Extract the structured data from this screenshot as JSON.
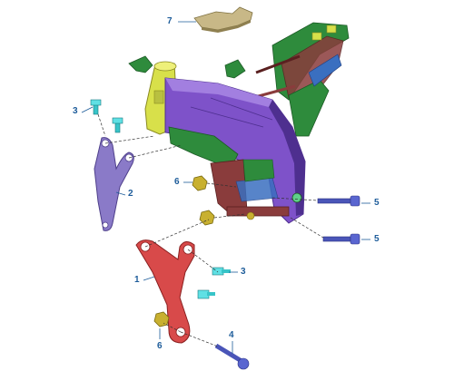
{
  "callouts": [
    {
      "id": "c7",
      "label": "7"
    },
    {
      "id": "c3a",
      "label": "3"
    },
    {
      "id": "c2",
      "label": "2"
    },
    {
      "id": "c6a",
      "label": "6"
    },
    {
      "id": "c5a",
      "label": "5"
    },
    {
      "id": "c5b",
      "label": "5"
    },
    {
      "id": "c1",
      "label": "1"
    },
    {
      "id": "c3b",
      "label": "3"
    },
    {
      "id": "c6b",
      "label": "6"
    },
    {
      "id": "c4",
      "label": "4"
    }
  ],
  "colors": {
    "callout_text": "#1d5c9a",
    "leader_line": "#1d5c9a",
    "frame_purple": "#7e52c9",
    "frame_purple_dark": "#4e2f8f",
    "frame_green": "#2e8b3c",
    "frame_yellow": "#d8e04a",
    "frame_brown": "#8a3c3c",
    "bracket_left": "#8a7ac8",
    "bracket_red": "#d84a4a",
    "cover_tan": "#c8b887",
    "bolt_cyan": "#38c4c8",
    "bolt_blue": "#4a55b8",
    "nut_gold": "#c8b030"
  }
}
